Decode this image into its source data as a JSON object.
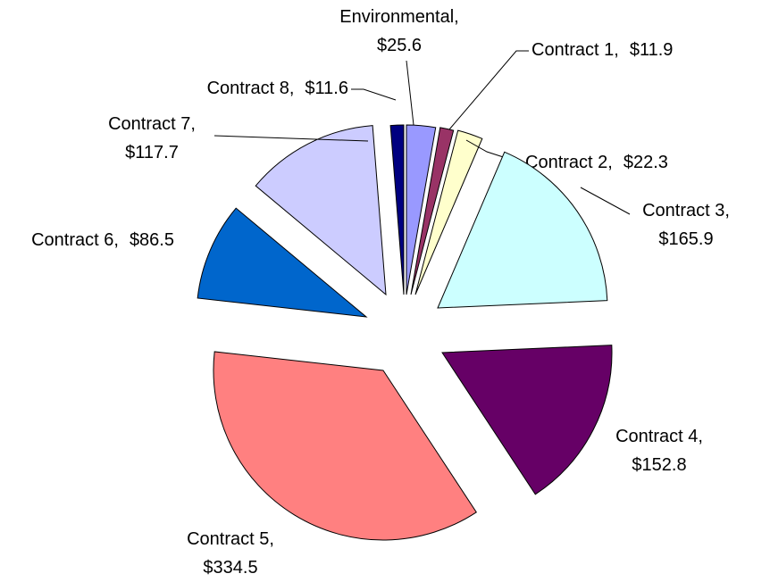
{
  "chart_data": {
    "type": "pie",
    "categories": [
      "Environmental,",
      "Contract 1,",
      "Contract 2,",
      "Contract 3,",
      "Contract 4,",
      "Contract 5,",
      "Contract 6,",
      "Contract 7,",
      "Contract 8,"
    ],
    "values": [
      25.6,
      11.9,
      22.3,
      165.9,
      152.8,
      334.5,
      86.5,
      117.7,
      11.6
    ],
    "value_labels": [
      "$25.6",
      "$11.9",
      "$22.3",
      "$165.9",
      "$152.8",
      "$334.5",
      "$86.5",
      "$117.7",
      "$11.6"
    ],
    "colors": [
      "#9999ff",
      "#993366",
      "#ffffcc",
      "#ccffff",
      "#660066",
      "#ff8080",
      "#0066cc",
      "#ccccff",
      "#000080"
    ]
  }
}
